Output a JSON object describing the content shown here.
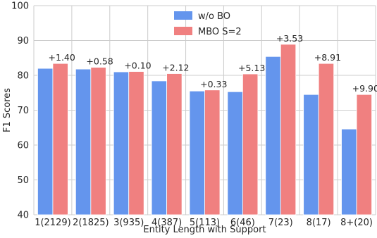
{
  "chart_data": {
    "type": "bar",
    "xlabel": "Entity Length with Support",
    "ylabel": "F1 Scores",
    "ylim": [
      40,
      100
    ],
    "yticks": [
      40,
      50,
      60,
      70,
      80,
      90,
      100
    ],
    "grid": true,
    "legend_position": "top-center",
    "categories": [
      "1(2129)",
      "2(1825)",
      "3(935)",
      "4(387)",
      "5(113)",
      "6(46)",
      "7(23)",
      "8(17)",
      "8+(20)"
    ],
    "series": [
      {
        "name": "w/o BO",
        "color": "#6495ed",
        "values": [
          82.0,
          81.8,
          81.0,
          78.4,
          75.5,
          75.3,
          85.4,
          74.5,
          64.6
        ]
      },
      {
        "name": "MBO S=2",
        "color": "#f08080",
        "values": [
          83.4,
          82.3,
          81.1,
          80.5,
          75.8,
          80.4,
          88.9,
          83.4,
          74.5
        ]
      }
    ],
    "annotations": [
      "+1.40",
      "+0.58",
      "+0.10",
      "+2.12",
      "+0.33",
      "+5.13",
      "+3.53",
      "+8.91",
      "+9.90"
    ]
  }
}
